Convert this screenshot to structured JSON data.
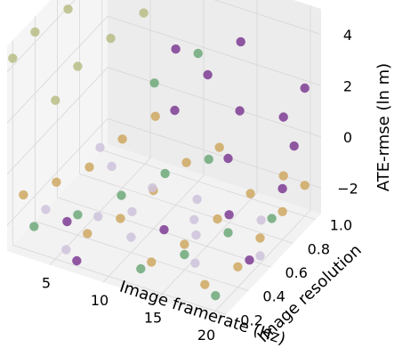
{
  "chart_data": {
    "type": "scatter3d",
    "axes": {
      "x": {
        "label": "Image framerate (Hz)",
        "ticks": [
          5,
          10,
          15,
          20
        ],
        "range": [
          1,
          21
        ]
      },
      "y": {
        "label": "Image resolution",
        "ticks": [
          0.2,
          0.4,
          0.6,
          0.8,
          1.0
        ],
        "range": [
          0.15,
          1.05
        ]
      },
      "z": {
        "label": "ATE-rmse (ln m)",
        "ticks": [
          -2,
          0,
          2,
          4
        ],
        "range": [
          -3,
          5
        ]
      }
    },
    "grid": true,
    "series": [
      {
        "color": "#b9bd86",
        "points": [
          [
            1,
            0.2,
            4.3
          ],
          [
            1,
            0.4,
            4.4
          ],
          [
            2,
            0.6,
            4.5
          ],
          [
            3,
            0.8,
            4.7
          ],
          [
            4,
            1.0,
            4.8
          ],
          [
            5,
            0.2,
            3.2
          ],
          [
            5,
            0.4,
            3.6
          ],
          [
            6,
            0.6,
            3.9
          ],
          [
            7,
            0.8,
            4.1
          ],
          [
            8,
            1.0,
            4.3
          ]
        ]
      },
      {
        "color": "#cfa861",
        "points": [
          [
            2,
            0.2,
            -0.9
          ],
          [
            3,
            0.4,
            -1.2
          ],
          [
            4,
            0.6,
            -1.4
          ],
          [
            5,
            0.8,
            -1.1
          ],
          [
            6,
            1.0,
            -1.0
          ],
          [
            8,
            0.2,
            -1.6
          ],
          [
            9,
            0.4,
            -1.8
          ],
          [
            10,
            0.6,
            -1.5
          ],
          [
            11,
            0.8,
            -1.2
          ],
          [
            12,
            1.0,
            -1.4
          ],
          [
            14,
            0.2,
            -1.9
          ],
          [
            15,
            0.4,
            -2.0
          ],
          [
            16,
            0.6,
            -1.8
          ],
          [
            17,
            0.8,
            -1.6
          ],
          [
            18,
            1.0,
            -1.7
          ],
          [
            19,
            0.2,
            -2.1
          ],
          [
            20,
            0.4,
            -2.2
          ],
          [
            20,
            0.6,
            -2.0
          ],
          [
            20,
            0.8,
            -1.9
          ],
          [
            20,
            1.0,
            -1.8
          ]
        ]
      },
      {
        "color": "#6fa97a",
        "points": [
          [
            3,
            0.2,
            -2.0
          ],
          [
            5,
            0.4,
            -2.2
          ],
          [
            7,
            0.6,
            -2.1
          ],
          [
            9,
            0.8,
            -1.9
          ],
          [
            11,
            1.0,
            -2.0
          ],
          [
            13,
            0.2,
            -2.3
          ],
          [
            15,
            0.4,
            -2.4
          ],
          [
            17,
            0.6,
            -2.2
          ],
          [
            19,
            0.8,
            -2.3
          ],
          [
            20,
            0.2,
            -2.4
          ],
          [
            8,
            0.8,
            1.5
          ],
          [
            10,
            1.0,
            2.0
          ]
        ]
      },
      {
        "color": "#cfc3dc",
        "points": [
          [
            2,
            0.4,
            -2.4
          ],
          [
            4,
            0.8,
            -2.3
          ],
          [
            6,
            0.2,
            -2.5
          ],
          [
            8,
            0.6,
            -2.6
          ],
          [
            10,
            0.4,
            -2.4
          ],
          [
            12,
            0.8,
            -2.5
          ],
          [
            14,
            0.6,
            -2.7
          ],
          [
            16,
            0.4,
            -2.6
          ],
          [
            18,
            0.8,
            -2.5
          ],
          [
            20,
            0.6,
            -2.7
          ],
          [
            5,
            0.6,
            -0.5
          ],
          [
            12,
            0.4,
            -0.2
          ],
          [
            18,
            0.2,
            0.3
          ],
          [
            9,
            0.2,
            -0.8
          ]
        ]
      },
      {
        "color": "#7e3c93",
        "points": [
          [
            4,
            0.4,
            -2.6
          ],
          [
            7,
            0.2,
            -2.8
          ],
          [
            11,
            0.6,
            -2.9
          ],
          [
            15,
            0.8,
            -2.7
          ],
          [
            19,
            0.6,
            -3.0
          ],
          [
            20,
            1.0,
            2.0
          ],
          [
            18,
            1.0,
            0.6
          ],
          [
            14,
            1.0,
            3.0
          ],
          [
            13,
            0.8,
            2.5
          ],
          [
            12,
            0.6,
            1.9
          ],
          [
            10,
            0.8,
            3.1
          ],
          [
            16,
            0.8,
            1.5
          ],
          [
            17,
            0.6,
            0.7
          ],
          [
            20,
            0.8,
            -1.0
          ],
          [
            19,
            1.0,
            -0.4
          ]
        ]
      }
    ]
  }
}
